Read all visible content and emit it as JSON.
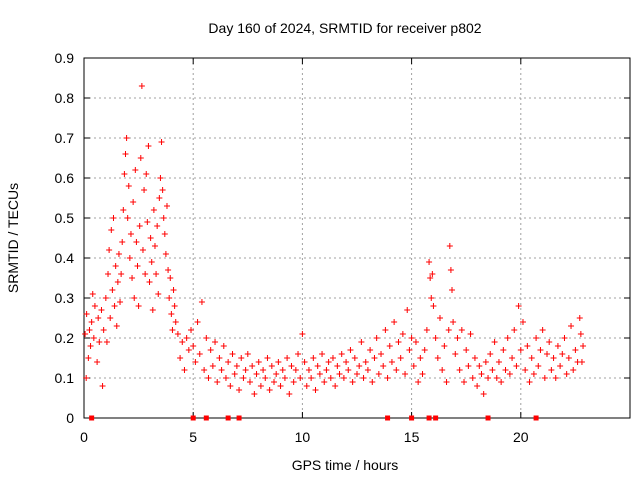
{
  "chart_data": {
    "type": "scatter",
    "title": "Day 160 of 2024, SRMTID for receiver p802",
    "xlabel": "GPS time / hours",
    "ylabel": "SRMTID / TECUs",
    "xlim": [
      0,
      25
    ],
    "ylim": [
      0,
      0.9
    ],
    "xticks": [
      0,
      5,
      10,
      15,
      20
    ],
    "yticks": [
      0,
      0.1,
      0.2,
      0.3,
      0.4,
      0.5,
      0.6,
      0.7,
      0.8,
      0.9
    ],
    "grid": true,
    "marker": "+",
    "color": "#ff0000",
    "zero_markers_x": [
      0.35,
      5.0,
      5.6,
      6.6,
      7.1,
      13.9,
      15.0,
      15.8,
      16.1,
      18.5,
      20.7
    ],
    "series": [
      {
        "name": "SRMTID",
        "points": [
          [
            0.05,
            0.21
          ],
          [
            0.1,
            0.1
          ],
          [
            0.12,
            0.26
          ],
          [
            0.2,
            0.15
          ],
          [
            0.25,
            0.22
          ],
          [
            0.3,
            0.18
          ],
          [
            0.35,
            0.24
          ],
          [
            0.4,
            0.31
          ],
          [
            0.45,
            0.2
          ],
          [
            0.5,
            0.28
          ],
          [
            0.6,
            0.14
          ],
          [
            0.65,
            0.25
          ],
          [
            0.7,
            0.19
          ],
          [
            0.8,
            0.27
          ],
          [
            0.85,
            0.08
          ],
          [
            0.9,
            0.22
          ],
          [
            1.0,
            0.3
          ],
          [
            1.05,
            0.19
          ],
          [
            1.1,
            0.36
          ],
          [
            1.15,
            0.42
          ],
          [
            1.2,
            0.25
          ],
          [
            1.25,
            0.47
          ],
          [
            1.3,
            0.32
          ],
          [
            1.35,
            0.5
          ],
          [
            1.4,
            0.28
          ],
          [
            1.45,
            0.38
          ],
          [
            1.5,
            0.23
          ],
          [
            1.55,
            0.34
          ],
          [
            1.6,
            0.41
          ],
          [
            1.65,
            0.29
          ],
          [
            1.7,
            0.36
          ],
          [
            1.75,
            0.44
          ],
          [
            1.8,
            0.52
          ],
          [
            1.85,
            0.61
          ],
          [
            1.9,
            0.66
          ],
          [
            1.95,
            0.7
          ],
          [
            2.0,
            0.5
          ],
          [
            2.05,
            0.58
          ],
          [
            2.1,
            0.4
          ],
          [
            2.15,
            0.46
          ],
          [
            2.2,
            0.35
          ],
          [
            2.25,
            0.54
          ],
          [
            2.3,
            0.3
          ],
          [
            2.35,
            0.62
          ],
          [
            2.4,
            0.44
          ],
          [
            2.45,
            0.38
          ],
          [
            2.5,
            0.28
          ],
          [
            2.55,
            0.48
          ],
          [
            2.6,
            0.65
          ],
          [
            2.65,
            0.83
          ],
          [
            2.7,
            0.42
          ],
          [
            2.75,
            0.57
          ],
          [
            2.8,
            0.36
          ],
          [
            2.85,
            0.61
          ],
          [
            2.9,
            0.49
          ],
          [
            2.95,
            0.68
          ],
          [
            3.0,
            0.34
          ],
          [
            3.05,
            0.45
          ],
          [
            3.1,
            0.39
          ],
          [
            3.15,
            0.27
          ],
          [
            3.2,
            0.52
          ],
          [
            3.25,
            0.43
          ],
          [
            3.3,
            0.36
          ],
          [
            3.35,
            0.48
          ],
          [
            3.4,
            0.31
          ],
          [
            3.45,
            0.55
          ],
          [
            3.5,
            0.6
          ],
          [
            3.55,
            0.69
          ],
          [
            3.6,
            0.57
          ],
          [
            3.65,
            0.5
          ],
          [
            3.7,
            0.46
          ],
          [
            3.75,
            0.41
          ],
          [
            3.8,
            0.53
          ],
          [
            3.85,
            0.37
          ],
          [
            3.9,
            0.3
          ],
          [
            3.95,
            0.35
          ],
          [
            4.0,
            0.26
          ],
          [
            4.05,
            0.22
          ],
          [
            4.1,
            0.32
          ],
          [
            4.15,
            0.28
          ],
          [
            4.2,
            0.24
          ],
          [
            4.3,
            0.21
          ],
          [
            4.4,
            0.15
          ],
          [
            4.5,
            0.19
          ],
          [
            4.6,
            0.12
          ],
          [
            4.7,
            0.2
          ],
          [
            4.8,
            0.17
          ],
          [
            4.9,
            0.22
          ],
          [
            5.0,
            0.18
          ],
          [
            5.1,
            0.14
          ],
          [
            5.2,
            0.24
          ],
          [
            5.3,
            0.16
          ],
          [
            5.4,
            0.29
          ],
          [
            5.5,
            0.12
          ],
          [
            5.6,
            0.2
          ],
          [
            5.7,
            0.1
          ],
          [
            5.8,
            0.17
          ],
          [
            5.9,
            0.13
          ],
          [
            6.0,
            0.19
          ],
          [
            6.1,
            0.09
          ],
          [
            6.2,
            0.15
          ],
          [
            6.3,
            0.12
          ],
          [
            6.4,
            0.18
          ],
          [
            6.5,
            0.1
          ],
          [
            6.6,
            0.14
          ],
          [
            6.7,
            0.08
          ],
          [
            6.8,
            0.16
          ],
          [
            6.9,
            0.11
          ],
          [
            7.0,
            0.13
          ],
          [
            7.1,
            0.07
          ],
          [
            7.2,
            0.15
          ],
          [
            7.3,
            0.1
          ],
          [
            7.4,
            0.12
          ],
          [
            7.5,
            0.16
          ],
          [
            7.6,
            0.09
          ],
          [
            7.7,
            0.13
          ],
          [
            7.8,
            0.06
          ],
          [
            7.9,
            0.11
          ],
          [
            8.0,
            0.14
          ],
          [
            8.1,
            0.08
          ],
          [
            8.2,
            0.12
          ],
          [
            8.3,
            0.1
          ],
          [
            8.4,
            0.15
          ],
          [
            8.5,
            0.07
          ],
          [
            8.6,
            0.13
          ],
          [
            8.7,
            0.09
          ],
          [
            8.8,
            0.11
          ],
          [
            8.9,
            0.14
          ],
          [
            9.0,
            0.08
          ],
          [
            9.1,
            0.12
          ],
          [
            9.2,
            0.1
          ],
          [
            9.3,
            0.15
          ],
          [
            9.4,
            0.06
          ],
          [
            9.5,
            0.13
          ],
          [
            9.6,
            0.09
          ],
          [
            9.7,
            0.12
          ],
          [
            9.8,
            0.16
          ],
          [
            9.9,
            0.1
          ],
          [
            10.0,
            0.21
          ],
          [
            10.1,
            0.14
          ],
          [
            10.2,
            0.08
          ],
          [
            10.3,
            0.12
          ],
          [
            10.4,
            0.1
          ],
          [
            10.5,
            0.15
          ],
          [
            10.6,
            0.07
          ],
          [
            10.7,
            0.13
          ],
          [
            10.8,
            0.11
          ],
          [
            10.9,
            0.16
          ],
          [
            11.0,
            0.09
          ],
          [
            11.1,
            0.12
          ],
          [
            11.2,
            0.14
          ],
          [
            11.3,
            0.1
          ],
          [
            11.4,
            0.15
          ],
          [
            11.5,
            0.08
          ],
          [
            11.6,
            0.13
          ],
          [
            11.7,
            0.11
          ],
          [
            11.8,
            0.16
          ],
          [
            11.9,
            0.1
          ],
          [
            12.0,
            0.14
          ],
          [
            12.1,
            0.12
          ],
          [
            12.2,
            0.17
          ],
          [
            12.3,
            0.09
          ],
          [
            12.4,
            0.15
          ],
          [
            12.5,
            0.11
          ],
          [
            12.6,
            0.13
          ],
          [
            12.7,
            0.19
          ],
          [
            12.8,
            0.1
          ],
          [
            12.9,
            0.14
          ],
          [
            13.0,
            0.12
          ],
          [
            13.1,
            0.17
          ],
          [
            13.2,
            0.09
          ],
          [
            13.3,
            0.15
          ],
          [
            13.4,
            0.2
          ],
          [
            13.5,
            0.11
          ],
          [
            13.6,
            0.16
          ],
          [
            13.7,
            0.13
          ],
          [
            13.8,
            0.22
          ],
          [
            13.9,
            0.1
          ],
          [
            14.0,
            0.18
          ],
          [
            14.1,
            0.14
          ],
          [
            14.2,
            0.24
          ],
          [
            14.3,
            0.12
          ],
          [
            14.4,
            0.19
          ],
          [
            14.5,
            0.15
          ],
          [
            14.6,
            0.21
          ],
          [
            14.7,
            0.11
          ],
          [
            14.8,
            0.27
          ],
          [
            14.9,
            0.17
          ],
          [
            15.0,
            0.2
          ],
          [
            15.1,
            0.13
          ],
          [
            15.2,
            0.19
          ],
          [
            15.3,
            0.09
          ],
          [
            15.4,
            0.15
          ],
          [
            15.5,
            0.11
          ],
          [
            15.6,
            0.17
          ],
          [
            15.7,
            0.22
          ],
          [
            15.8,
            0.39
          ],
          [
            15.85,
            0.35
          ],
          [
            15.9,
            0.3
          ],
          [
            15.95,
            0.36
          ],
          [
            16.0,
            0.28
          ],
          [
            16.1,
            0.2
          ],
          [
            16.2,
            0.15
          ],
          [
            16.3,
            0.25
          ],
          [
            16.4,
            0.12
          ],
          [
            16.5,
            0.18
          ],
          [
            16.6,
            0.09
          ],
          [
            16.7,
            0.22
          ],
          [
            16.75,
            0.43
          ],
          [
            16.8,
            0.37
          ],
          [
            16.85,
            0.32
          ],
          [
            16.9,
            0.24
          ],
          [
            17.0,
            0.16
          ],
          [
            17.1,
            0.2
          ],
          [
            17.2,
            0.12
          ],
          [
            17.3,
            0.22
          ],
          [
            17.4,
            0.09
          ],
          [
            17.5,
            0.17
          ],
          [
            17.6,
            0.13
          ],
          [
            17.7,
            0.21
          ],
          [
            17.8,
            0.1
          ],
          [
            17.9,
            0.15
          ],
          [
            18.0,
            0.08
          ],
          [
            18.1,
            0.13
          ],
          [
            18.2,
            0.11
          ],
          [
            18.3,
            0.06
          ],
          [
            18.4,
            0.14
          ],
          [
            18.5,
            0.1
          ],
          [
            18.6,
            0.16
          ],
          [
            18.7,
            0.12
          ],
          [
            18.8,
            0.19
          ],
          [
            18.9,
            0.1
          ],
          [
            19.0,
            0.14
          ],
          [
            19.1,
            0.09
          ],
          [
            19.2,
            0.17
          ],
          [
            19.3,
            0.12
          ],
          [
            19.4,
            0.2
          ],
          [
            19.5,
            0.11
          ],
          [
            19.6,
            0.15
          ],
          [
            19.7,
            0.22
          ],
          [
            19.8,
            0.13
          ],
          [
            19.9,
            0.28
          ],
          [
            20.0,
            0.17
          ],
          [
            20.1,
            0.24
          ],
          [
            20.2,
            0.12
          ],
          [
            20.3,
            0.18
          ],
          [
            20.4,
            0.09
          ],
          [
            20.5,
            0.15
          ],
          [
            20.6,
            0.11
          ],
          [
            20.7,
            0.2
          ],
          [
            20.8,
            0.13
          ],
          [
            20.9,
            0.17
          ],
          [
            21.0,
            0.22
          ],
          [
            21.1,
            0.1
          ],
          [
            21.2,
            0.16
          ],
          [
            21.3,
            0.19
          ],
          [
            21.4,
            0.12
          ],
          [
            21.5,
            0.15
          ],
          [
            21.6,
            0.1
          ],
          [
            21.7,
            0.18
          ],
          [
            21.8,
            0.13
          ],
          [
            21.9,
            0.16
          ],
          [
            22.0,
            0.2
          ],
          [
            22.1,
            0.11
          ],
          [
            22.2,
            0.15
          ],
          [
            22.3,
            0.23
          ],
          [
            22.4,
            0.12
          ],
          [
            22.5,
            0.17
          ],
          [
            22.6,
            0.14
          ],
          [
            22.7,
            0.25
          ],
          [
            22.75,
            0.21
          ],
          [
            22.8,
            0.14
          ],
          [
            22.85,
            0.18
          ]
        ]
      }
    ]
  }
}
